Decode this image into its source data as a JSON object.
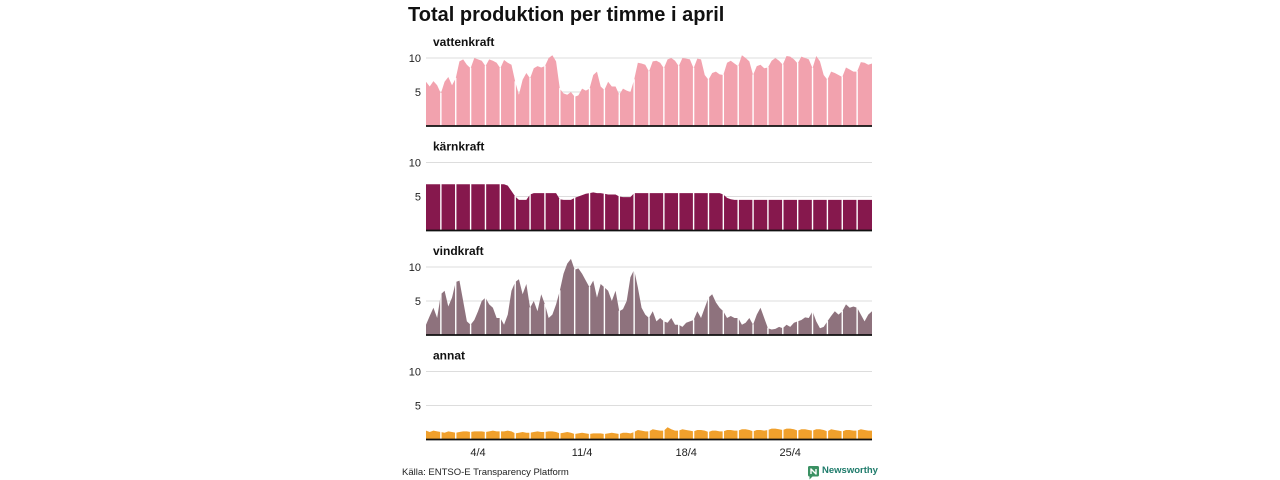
{
  "source": "Källa: ENTSO-E Transparency Platform",
  "brand": {
    "name": "Newsworthy",
    "icon": "newsworthy-logo-icon",
    "text_color": "#1e7b6b",
    "icon_color": "#3b9163"
  },
  "chart_data": {
    "type": "area",
    "title": "Total produktion per timme i april",
    "x_range_hours": [
      0,
      720
    ],
    "x_step_hours": 6,
    "x_ticks": [
      {
        "label": "4/4",
        "hour": 84
      },
      {
        "label": "11/4",
        "hour": 252
      },
      {
        "label": "18/4",
        "hour": 420
      },
      {
        "label": "25/4",
        "hour": 588
      }
    ],
    "ylim": [
      0,
      10
    ],
    "y_ticks": [
      5,
      10
    ],
    "grid": true,
    "grid_color": "#dddddd",
    "day_separator_color": "#ffffff",
    "series": [
      {
        "name": "vattenkraft",
        "color": "#f2a2ae",
        "values": [
          6.5,
          5.8,
          6.6,
          6.0,
          4.8,
          6.5,
          7.2,
          6.0,
          7.0,
          9.5,
          9.8,
          9.0,
          8.5,
          10.0,
          9.8,
          9.6,
          8.8,
          9.8,
          9.6,
          9.3,
          8.5,
          9.7,
          9.3,
          9.0,
          6.5,
          4.6,
          6.8,
          7.8,
          7.0,
          8.5,
          8.8,
          8.6,
          8.8,
          10.0,
          10.4,
          9.5,
          5.5,
          4.8,
          4.6,
          5.0,
          4.3,
          4.5,
          5.5,
          5.2,
          5.5,
          7.5,
          8.0,
          5.8,
          5.3,
          6.5,
          5.8,
          5.8,
          4.6,
          5.5,
          5.2,
          5.0,
          6.8,
          9.3,
          9.2,
          9.0,
          8.0,
          9.5,
          9.6,
          9.3,
          8.5,
          9.8,
          10.0,
          9.6,
          8.8,
          10.0,
          9.9,
          9.8,
          8.5,
          9.9,
          9.8,
          7.5,
          6.8,
          7.8,
          8.0,
          7.6,
          7.5,
          9.3,
          9.6,
          9.2,
          8.8,
          10.4,
          10.0,
          9.5,
          7.5,
          8.8,
          9.0,
          8.5,
          8.6,
          9.6,
          10.0,
          9.6,
          9.0,
          10.3,
          10.2,
          9.8,
          9.2,
          10.2,
          10.0,
          9.8,
          8.5,
          10.3,
          9.5,
          7.5,
          6.8,
          8.0,
          7.8,
          7.5,
          7.2,
          8.6,
          8.3,
          8.0,
          8.0,
          9.4,
          9.3,
          9.0,
          9.2
        ]
      },
      {
        "name": "kärnkraft",
        "color": "#86184d",
        "values": [
          6.8,
          6.8,
          6.8,
          6.8,
          6.8,
          6.8,
          6.8,
          6.8,
          6.8,
          6.8,
          6.8,
          6.8,
          6.8,
          6.8,
          6.8,
          6.8,
          6.8,
          6.8,
          6.8,
          6.8,
          6.8,
          6.8,
          6.6,
          5.8,
          5.0,
          4.5,
          4.5,
          4.5,
          5.3,
          5.5,
          5.5,
          5.5,
          5.5,
          5.5,
          5.5,
          5.5,
          4.6,
          4.5,
          4.5,
          4.5,
          4.8,
          5.0,
          5.2,
          5.4,
          5.5,
          5.6,
          5.5,
          5.5,
          5.4,
          5.3,
          5.3,
          5.3,
          5.0,
          4.9,
          4.9,
          4.9,
          5.5,
          5.5,
          5.5,
          5.5,
          5.5,
          5.5,
          5.5,
          5.5,
          5.5,
          5.5,
          5.5,
          5.5,
          5.5,
          5.5,
          5.5,
          5.5,
          5.5,
          5.5,
          5.5,
          5.5,
          5.5,
          5.5,
          5.5,
          5.5,
          5.3,
          4.8,
          4.6,
          4.5,
          4.5,
          4.5,
          4.5,
          4.5,
          4.5,
          4.5,
          4.5,
          4.5,
          4.5,
          4.5,
          4.5,
          4.5,
          4.5,
          4.5,
          4.5,
          4.5,
          4.5,
          4.5,
          4.5,
          4.5,
          4.5,
          4.5,
          4.5,
          4.5,
          4.5,
          4.5,
          4.5,
          4.5,
          4.5,
          4.5,
          4.5,
          4.5,
          4.5,
          4.5,
          4.5,
          4.5,
          4.5
        ]
      },
      {
        "name": "vindkraft",
        "color": "#8e727d",
        "values": [
          1.5,
          2.8,
          4.0,
          2.5,
          6.0,
          6.5,
          4.2,
          5.5,
          7.8,
          8.0,
          5.0,
          2.0,
          1.5,
          2.2,
          3.5,
          5.0,
          5.5,
          4.5,
          4.0,
          2.5,
          2.5,
          1.5,
          3.0,
          6.5,
          7.8,
          8.2,
          6.0,
          7.5,
          4.0,
          5.0,
          3.5,
          6.0,
          4.5,
          2.5,
          3.0,
          4.5,
          6.5,
          9.0,
          10.5,
          11.2,
          9.6,
          9.8,
          9.0,
          8.0,
          7.0,
          8.0,
          5.5,
          7.5,
          7.0,
          6.5,
          5.0,
          6.5,
          3.5,
          3.8,
          5.0,
          8.5,
          9.6,
          7.0,
          4.0,
          3.0,
          2.5,
          3.5,
          2.0,
          2.5,
          2.0,
          1.8,
          2.5,
          1.5,
          1.5,
          1.2,
          1.8,
          2.0,
          2.2,
          3.5,
          2.5,
          4.0,
          5.5,
          6.0,
          4.8,
          4.0,
          3.5,
          2.5,
          2.8,
          2.5,
          2.5,
          1.5,
          1.8,
          2.5,
          1.5,
          3.0,
          4.0,
          2.5,
          1.0,
          0.8,
          0.9,
          1.2,
          1.0,
          1.5,
          1.2,
          1.8,
          2.0,
          2.2,
          2.6,
          2.5,
          3.5,
          2.0,
          1.0,
          1.2,
          2.0,
          2.8,
          3.5,
          3.0,
          3.5,
          4.5,
          4.0,
          4.2,
          4.0,
          3.0,
          2.0,
          3.0,
          3.5
        ]
      },
      {
        "name": "annat",
        "color": "#f0a02c",
        "values": [
          1.3,
          1.1,
          1.3,
          1.2,
          1.1,
          1.0,
          1.2,
          1.1,
          1.0,
          1.1,
          1.2,
          1.2,
          1.1,
          1.2,
          1.2,
          1.2,
          1.1,
          1.2,
          1.3,
          1.2,
          1.2,
          1.2,
          1.3,
          1.2,
          0.9,
          1.0,
          1.1,
          1.0,
          1.0,
          1.1,
          1.2,
          1.1,
          1.1,
          1.2,
          1.2,
          1.1,
          0.9,
          1.0,
          1.1,
          1.0,
          0.8,
          0.9,
          1.0,
          0.9,
          0.8,
          0.9,
          0.9,
          0.9,
          0.8,
          0.9,
          1.0,
          0.9,
          0.8,
          1.0,
          1.0,
          0.9,
          1.1,
          1.4,
          1.3,
          1.2,
          1.2,
          1.5,
          1.4,
          1.3,
          1.3,
          1.8,
          1.5,
          1.3,
          1.3,
          1.5,
          1.4,
          1.3,
          1.2,
          1.4,
          1.4,
          1.3,
          1.1,
          1.3,
          1.3,
          1.2,
          1.2,
          1.4,
          1.4,
          1.3,
          1.3,
          1.5,
          1.5,
          1.4,
          1.2,
          1.4,
          1.4,
          1.3,
          1.4,
          1.6,
          1.6,
          1.5,
          1.4,
          1.6,
          1.6,
          1.5,
          1.3,
          1.5,
          1.5,
          1.4,
          1.3,
          1.5,
          1.5,
          1.4,
          1.2,
          1.5,
          1.4,
          1.3,
          1.2,
          1.4,
          1.4,
          1.3,
          1.3,
          1.5,
          1.4,
          1.3,
          1.3
        ]
      }
    ]
  }
}
